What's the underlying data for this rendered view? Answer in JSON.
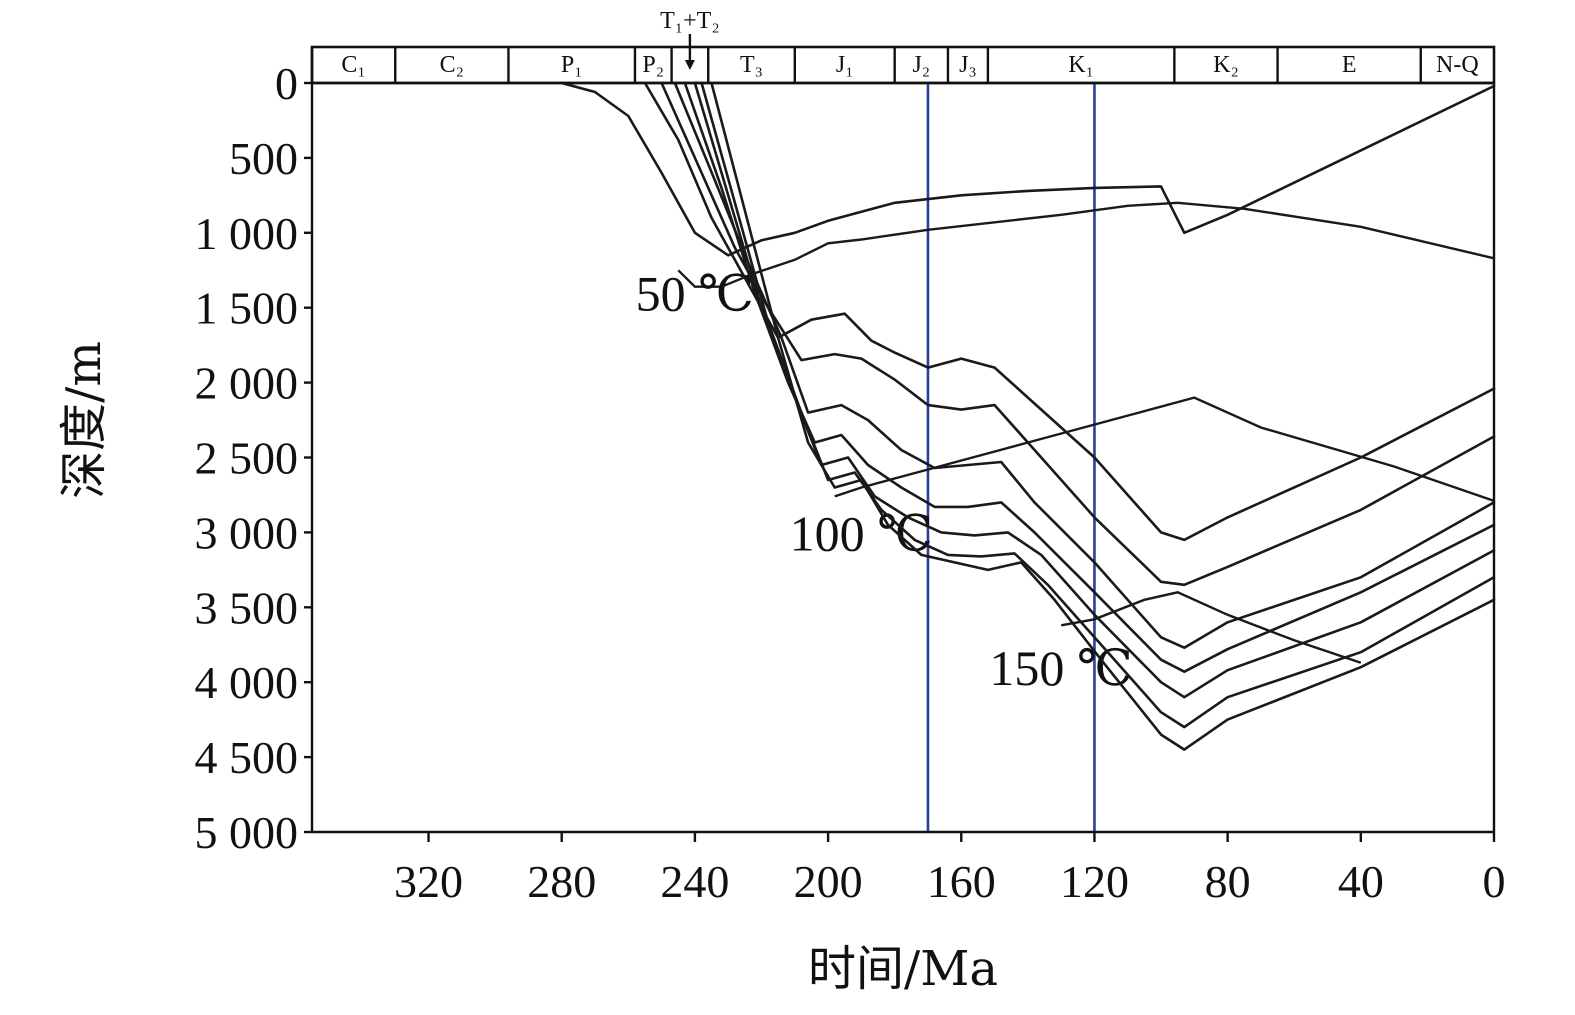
{
  "chart_data": {
    "type": "line",
    "title": "",
    "xlabel": "时间/Ma",
    "ylabel": "深度/m",
    "xlim": [
      355,
      0
    ],
    "ylim": [
      5000,
      0
    ],
    "x_ticks": [
      "320",
      "280",
      "240",
      "200",
      "160",
      "120",
      "80",
      "40",
      "0"
    ],
    "y_ticks": [
      "0",
      "500",
      "1 000",
      "1 500",
      "2 000",
      "2 500",
      "3 000",
      "3 500",
      "4 000",
      "4 500",
      "5 000"
    ],
    "periods": [
      {
        "label": "C₁",
        "start": 355,
        "end": 330
      },
      {
        "label": "C₂",
        "start": 330,
        "end": 296
      },
      {
        "label": "P₁",
        "start": 296,
        "end": 258
      },
      {
        "label": "P₂",
        "start": 258,
        "end": 247
      },
      {
        "label": "",
        "start": 247,
        "end": 236
      },
      {
        "label": "T₃",
        "start": 236,
        "end": 210
      },
      {
        "label": "J₁",
        "start": 210,
        "end": 180
      },
      {
        "label": "J₂",
        "start": 180,
        "end": 164
      },
      {
        "label": "J₃",
        "start": 164,
        "end": 152
      },
      {
        "label": "K₁",
        "start": 152,
        "end": 96
      },
      {
        "label": "K₂",
        "start": 96,
        "end": 65
      },
      {
        "label": "E",
        "start": 65,
        "end": 22
      },
      {
        "label": "N-Q",
        "start": 22,
        "end": 0
      }
    ],
    "t1t2_label": "T₁+T₂",
    "markers": [
      170,
      120
    ],
    "marker_color": "#2b3f9a",
    "line_color": "#1a1a1a",
    "isotherms": [
      {
        "name": "50 ℃",
        "label_at": [
          240,
          1400
        ],
        "points": [
          [
            245,
            1250
          ],
          [
            240,
            1360
          ],
          [
            232,
            1360
          ],
          [
            222,
            1270
          ],
          [
            210,
            1180
          ],
          [
            200,
            1070
          ],
          [
            190,
            1045
          ],
          [
            170,
            980
          ],
          [
            130,
            880
          ],
          [
            110,
            820
          ],
          [
            95,
            800
          ],
          [
            75,
            840
          ],
          [
            40,
            960
          ],
          [
            0,
            1170
          ]
        ]
      },
      {
        "name": "100 ℃",
        "label_at": [
          190,
          3000
        ],
        "points": [
          [
            198,
            2760
          ],
          [
            190,
            2700
          ],
          [
            170,
            2580
          ],
          [
            140,
            2400
          ],
          [
            110,
            2220
          ],
          [
            90,
            2100
          ],
          [
            70,
            2300
          ],
          [
            30,
            2560
          ],
          [
            0,
            2790
          ]
        ]
      },
      {
        "name": "150 ℃",
        "label_at": [
          130,
          3900
        ],
        "points": [
          [
            130,
            3620
          ],
          [
            120,
            3580
          ],
          [
            105,
            3450
          ],
          [
            95,
            3400
          ],
          [
            80,
            3550
          ],
          [
            60,
            3720
          ],
          [
            40,
            3870
          ]
        ]
      }
    ],
    "series": [
      {
        "values": [
          [
            280,
            0
          ],
          [
            270,
            60
          ],
          [
            260,
            220
          ],
          [
            250,
            600
          ],
          [
            240,
            1000
          ],
          [
            230,
            1150
          ],
          [
            220,
            1050
          ],
          [
            210,
            1000
          ],
          [
            200,
            920
          ],
          [
            190,
            860
          ],
          [
            180,
            800
          ],
          [
            160,
            750
          ],
          [
            140,
            720
          ],
          [
            120,
            700
          ],
          [
            100,
            690
          ],
          [
            93,
            1000
          ],
          [
            80,
            880
          ],
          [
            40,
            450
          ],
          [
            0,
            20
          ]
        ]
      },
      {
        "values": [
          [
            255,
            0
          ],
          [
            245,
            380
          ],
          [
            235,
            900
          ],
          [
            225,
            1300
          ],
          [
            215,
            1700
          ],
          [
            205,
            1580
          ],
          [
            195,
            1540
          ],
          [
            187,
            1720
          ],
          [
            180,
            1800
          ],
          [
            170,
            1900
          ],
          [
            160,
            1840
          ],
          [
            150,
            1900
          ],
          [
            140,
            2100
          ],
          [
            120,
            2500
          ],
          [
            100,
            3000
          ],
          [
            93,
            3050
          ],
          [
            80,
            2900
          ],
          [
            40,
            2500
          ],
          [
            0,
            2040
          ]
        ]
      },
      {
        "values": [
          [
            250,
            0
          ],
          [
            238,
            600
          ],
          [
            228,
            1100
          ],
          [
            218,
            1500
          ],
          [
            208,
            1850
          ],
          [
            198,
            1810
          ],
          [
            190,
            1840
          ],
          [
            180,
            1980
          ],
          [
            170,
            2150
          ],
          [
            160,
            2180
          ],
          [
            150,
            2150
          ],
          [
            140,
            2400
          ],
          [
            120,
            2900
          ],
          [
            100,
            3330
          ],
          [
            93,
            3350
          ],
          [
            80,
            3230
          ],
          [
            40,
            2850
          ],
          [
            0,
            2360
          ]
        ]
      },
      {
        "values": [
          [
            246,
            0
          ],
          [
            234,
            650
          ],
          [
            224,
            1200
          ],
          [
            214,
            1700
          ],
          [
            206,
            2200
          ],
          [
            196,
            2150
          ],
          [
            188,
            2250
          ],
          [
            178,
            2450
          ],
          [
            168,
            2570
          ],
          [
            158,
            2550
          ],
          [
            148,
            2530
          ],
          [
            138,
            2800
          ],
          [
            120,
            3200
          ],
          [
            100,
            3700
          ],
          [
            93,
            3770
          ],
          [
            80,
            3600
          ],
          [
            40,
            3300
          ],
          [
            0,
            2800
          ]
        ]
      },
      {
        "values": [
          [
            243,
            0
          ],
          [
            232,
            700
          ],
          [
            222,
            1400
          ],
          [
            212,
            2000
          ],
          [
            204,
            2400
          ],
          [
            196,
            2350
          ],
          [
            188,
            2550
          ],
          [
            178,
            2700
          ],
          [
            168,
            2830
          ],
          [
            158,
            2830
          ],
          [
            148,
            2800
          ],
          [
            138,
            3000
          ],
          [
            120,
            3400
          ],
          [
            100,
            3850
          ],
          [
            93,
            3930
          ],
          [
            80,
            3780
          ],
          [
            40,
            3400
          ],
          [
            0,
            2950
          ]
        ]
      },
      {
        "values": [
          [
            240,
            0
          ],
          [
            230,
            750
          ],
          [
            220,
            1500
          ],
          [
            210,
            2100
          ],
          [
            202,
            2550
          ],
          [
            194,
            2500
          ],
          [
            186,
            2760
          ],
          [
            176,
            2900
          ],
          [
            166,
            3000
          ],
          [
            156,
            3020
          ],
          [
            146,
            3000
          ],
          [
            136,
            3150
          ],
          [
            120,
            3550
          ],
          [
            100,
            4000
          ],
          [
            93,
            4100
          ],
          [
            80,
            3920
          ],
          [
            40,
            3600
          ],
          [
            0,
            3120
          ]
        ]
      },
      {
        "values": [
          [
            238,
            0
          ],
          [
            228,
            800
          ],
          [
            218,
            1600
          ],
          [
            208,
            2200
          ],
          [
            200,
            2650
          ],
          [
            192,
            2600
          ],
          [
            184,
            2850
          ],
          [
            174,
            3050
          ],
          [
            164,
            3150
          ],
          [
            154,
            3160
          ],
          [
            144,
            3140
          ],
          [
            134,
            3350
          ],
          [
            120,
            3700
          ],
          [
            100,
            4200
          ],
          [
            93,
            4300
          ],
          [
            80,
            4100
          ],
          [
            40,
            3800
          ],
          [
            0,
            3300
          ]
        ]
      },
      {
        "values": [
          [
            235,
            0
          ],
          [
            225,
            850
          ],
          [
            215,
            1700
          ],
          [
            206,
            2400
          ],
          [
            198,
            2700
          ],
          [
            190,
            2650
          ],
          [
            182,
            2950
          ],
          [
            172,
            3150
          ],
          [
            162,
            3200
          ],
          [
            152,
            3250
          ],
          [
            142,
            3200
          ],
          [
            132,
            3450
          ],
          [
            118,
            3850
          ],
          [
            100,
            4350
          ],
          [
            93,
            4450
          ],
          [
            80,
            4250
          ],
          [
            40,
            3900
          ],
          [
            0,
            3450
          ]
        ]
      }
    ]
  }
}
